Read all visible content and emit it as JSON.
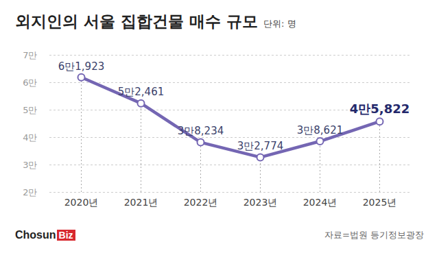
{
  "chart_data": {
    "type": "line",
    "title": "외지인의 서울 집합건물 매수 규모",
    "subtitle": "단위: 명",
    "source": "자료=법원 등기정보광장",
    "logo": [
      "Chosun",
      "Biz"
    ],
    "categories": [
      "2020년",
      "2021년",
      "2022년",
      "2023년",
      "2024년",
      "2025년"
    ],
    "values": [
      61923,
      52461,
      38234,
      32774,
      38621,
      45822
    ],
    "value_labels": [
      "6만1,923",
      "5만2,461",
      "3만8,234",
      "3만2,774",
      "3만8,621",
      "4만5,822"
    ],
    "data_labels": true,
    "color": "#7466b3",
    "marker": "circle",
    "ylim": [
      20000,
      70000
    ],
    "yticks": [
      {
        "value": 20000,
        "label": "2만"
      },
      {
        "value": 30000,
        "label": "3만"
      },
      {
        "value": 40000,
        "label": "4만"
      },
      {
        "value": 50000,
        "label": "5만"
      },
      {
        "value": 60000,
        "label": "6만"
      },
      {
        "value": 70000,
        "label": "7만"
      }
    ],
    "grid": true
  }
}
